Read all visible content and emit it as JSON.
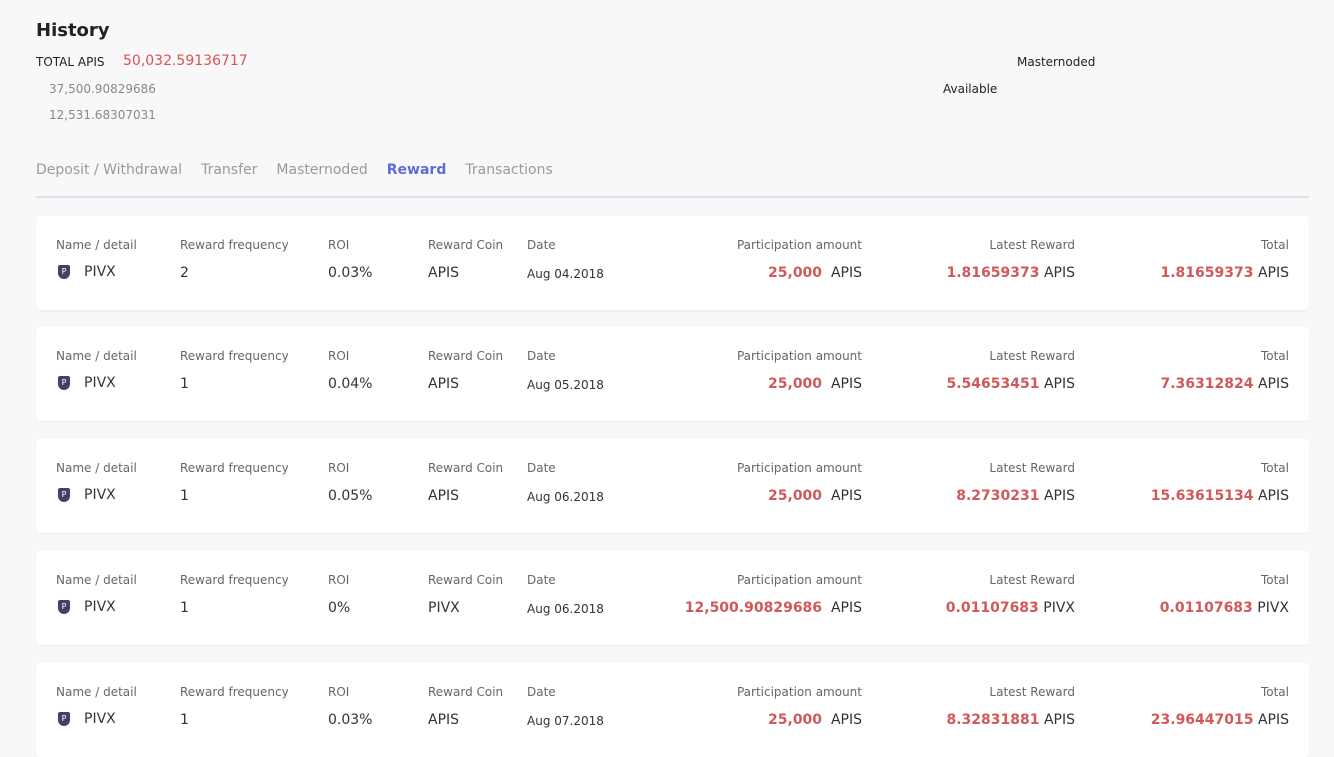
{
  "header": {
    "title": "History",
    "total_label": "TOTAL APIS",
    "total_value": "50,032.59136717",
    "masternoded_value": "37,500.90829686",
    "available_value": "12,531.68307031",
    "masternoded_label": "Masternoded",
    "available_label": "Available"
  },
  "tabs": [
    {
      "label": "Deposit / Withdrawal"
    },
    {
      "label": "Transfer"
    },
    {
      "label": "Masternoded"
    },
    {
      "label": "Reward",
      "active": true
    },
    {
      "label": "Transactions"
    }
  ],
  "columns": {
    "name": "Name / detail",
    "freq": "Reward frequency",
    "roi": "ROI",
    "coin": "Reward Coin",
    "date": "Date",
    "part": "Participation amount",
    "latest": "Latest Reward",
    "total": "Total"
  },
  "accent": "#5a6fd6",
  "highlight": "#d0595a",
  "rows": [
    {
      "name": "PIVX",
      "icon": "pivx-icon",
      "freq": "2",
      "roi": "0.03%",
      "coin": "APIS",
      "date": "Aug 04.2018",
      "part": "25,000",
      "part_unit": "APIS",
      "latest": "1.81659373",
      "latest_unit": "APIS",
      "total": "1.81659373",
      "total_unit": "APIS"
    },
    {
      "name": "PIVX",
      "icon": "pivx-icon",
      "freq": "1",
      "roi": "0.04%",
      "coin": "APIS",
      "date": "Aug 05.2018",
      "part": "25,000",
      "part_unit": "APIS",
      "latest": "5.54653451",
      "latest_unit": "APIS",
      "total": "7.36312824",
      "total_unit": "APIS"
    },
    {
      "name": "PIVX",
      "icon": "pivx-icon",
      "freq": "1",
      "roi": "0.05%",
      "coin": "APIS",
      "date": "Aug 06.2018",
      "part": "25,000",
      "part_unit": "APIS",
      "latest": "8.2730231",
      "latest_unit": "APIS",
      "total": "15.63615134",
      "total_unit": "APIS"
    },
    {
      "name": "PIVX",
      "icon": "pivx-icon",
      "freq": "1",
      "roi": "0%",
      "coin": "PIVX",
      "date": "Aug 06.2018",
      "part": "12,500.90829686",
      "part_unit": "APIS",
      "latest": "0.01107683",
      "latest_unit": "PIVX",
      "total": "0.01107683",
      "total_unit": "PIVX"
    },
    {
      "name": "PIVX",
      "icon": "pivx-icon",
      "freq": "1",
      "roi": "0.03%",
      "coin": "APIS",
      "date": "Aug 07.2018",
      "part": "25,000",
      "part_unit": "APIS",
      "latest": "8.32831881",
      "latest_unit": "APIS",
      "total": "23.96447015",
      "total_unit": "APIS"
    }
  ]
}
